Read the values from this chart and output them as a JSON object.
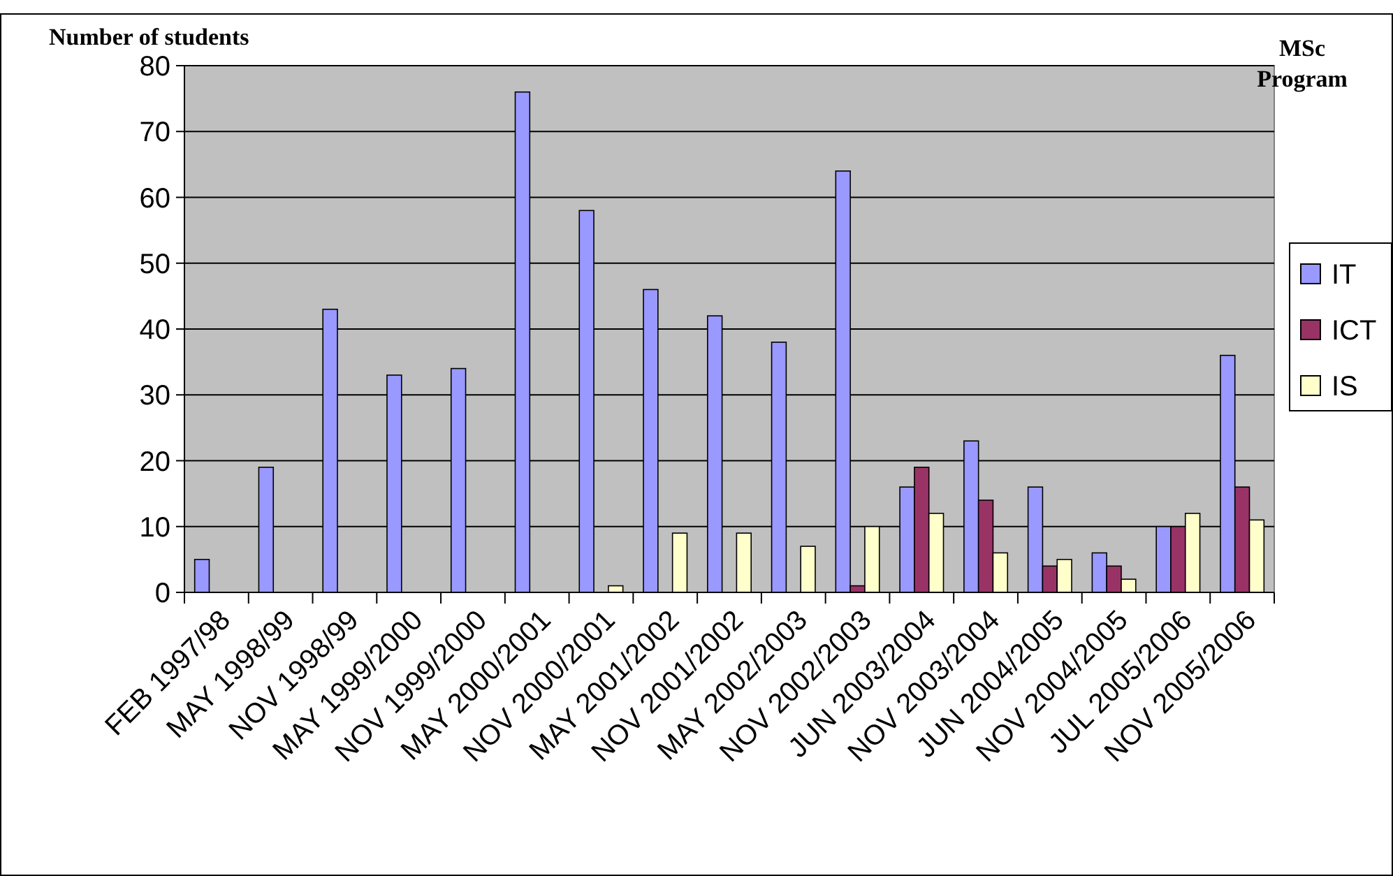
{
  "chart_data": {
    "type": "bar",
    "title": "MSc Program",
    "ylabel": "Number of students",
    "categories": [
      "FEB 1997/98",
      "MAY 1998/99",
      "NOV 1998/99",
      "MAY 1999/2000",
      "NOV 1999/2000",
      "MAY 2000/2001",
      "NOV 2000/2001",
      "MAY 2001/2002",
      "NOV 2001/2002",
      "MAY 2002/2003",
      "NOV 2002/2003",
      "JUN 2003/2004",
      "NOV 2003/2004",
      "JUN 2004/2005",
      "NOV 2004/2005",
      "JUL 2005/2006",
      "NOV 2005/2006"
    ],
    "series": [
      {
        "name": "IT",
        "color": "#9999ff",
        "values": [
          5,
          19,
          43,
          33,
          34,
          76,
          58,
          46,
          42,
          38,
          64,
          16,
          23,
          16,
          6,
          10,
          36
        ]
      },
      {
        "name": "ICT",
        "color": "#993366",
        "values": [
          null,
          null,
          null,
          null,
          null,
          null,
          null,
          null,
          null,
          null,
          1,
          19,
          14,
          4,
          4,
          10,
          16
        ]
      },
      {
        "name": "IS",
        "color": "#ffffcc",
        "values": [
          null,
          null,
          null,
          null,
          null,
          null,
          1,
          9,
          9,
          7,
          10,
          12,
          6,
          5,
          2,
          12,
          11
        ]
      }
    ],
    "ylim": [
      0,
      80
    ],
    "yticks": [
      0,
      10,
      20,
      30,
      40,
      50,
      60,
      70,
      80
    ],
    "grid": "y",
    "legend": "right"
  }
}
